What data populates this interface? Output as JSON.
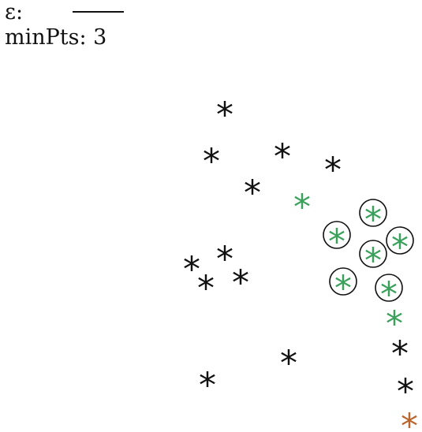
{
  "params": {
    "epsilon_label": "ε:",
    "minpts_label": "minPts: 3"
  },
  "colors": {
    "noise": "#111111",
    "core": "#3aa05c",
    "border": "#3aa05c",
    "outlier": "#b8662e",
    "circle": "#111111"
  },
  "glyph": "*",
  "points": [
    {
      "id": "p1",
      "role": "noise",
      "circled": false
    },
    {
      "id": "p2",
      "role": "noise",
      "circled": false
    },
    {
      "id": "p3",
      "role": "noise",
      "circled": false
    },
    {
      "id": "p4",
      "role": "noise",
      "circled": false
    },
    {
      "id": "p5",
      "role": "noise",
      "circled": false
    },
    {
      "id": "p6",
      "role": "border",
      "circled": false
    },
    {
      "id": "p7",
      "role": "core",
      "circled": true
    },
    {
      "id": "p8",
      "role": "core",
      "circled": true
    },
    {
      "id": "p9",
      "role": "core",
      "circled": true
    },
    {
      "id": "p10",
      "role": "core",
      "circled": true
    },
    {
      "id": "p11",
      "role": "core",
      "circled": true
    },
    {
      "id": "p12",
      "role": "core",
      "circled": true
    },
    {
      "id": "p13",
      "role": "border",
      "circled": false
    },
    {
      "id": "p14",
      "role": "noise",
      "circled": false
    },
    {
      "id": "p15",
      "role": "noise",
      "circled": false
    },
    {
      "id": "p16",
      "role": "noise",
      "circled": false
    },
    {
      "id": "p17",
      "role": "noise",
      "circled": false
    },
    {
      "id": "p18",
      "role": "noise",
      "circled": false
    },
    {
      "id": "p19",
      "role": "noise",
      "circled": false
    },
    {
      "id": "p20",
      "role": "noise",
      "circled": false
    },
    {
      "id": "p21",
      "role": "noise",
      "circled": false
    },
    {
      "id": "p22",
      "role": "outlier",
      "circled": false
    }
  ]
}
